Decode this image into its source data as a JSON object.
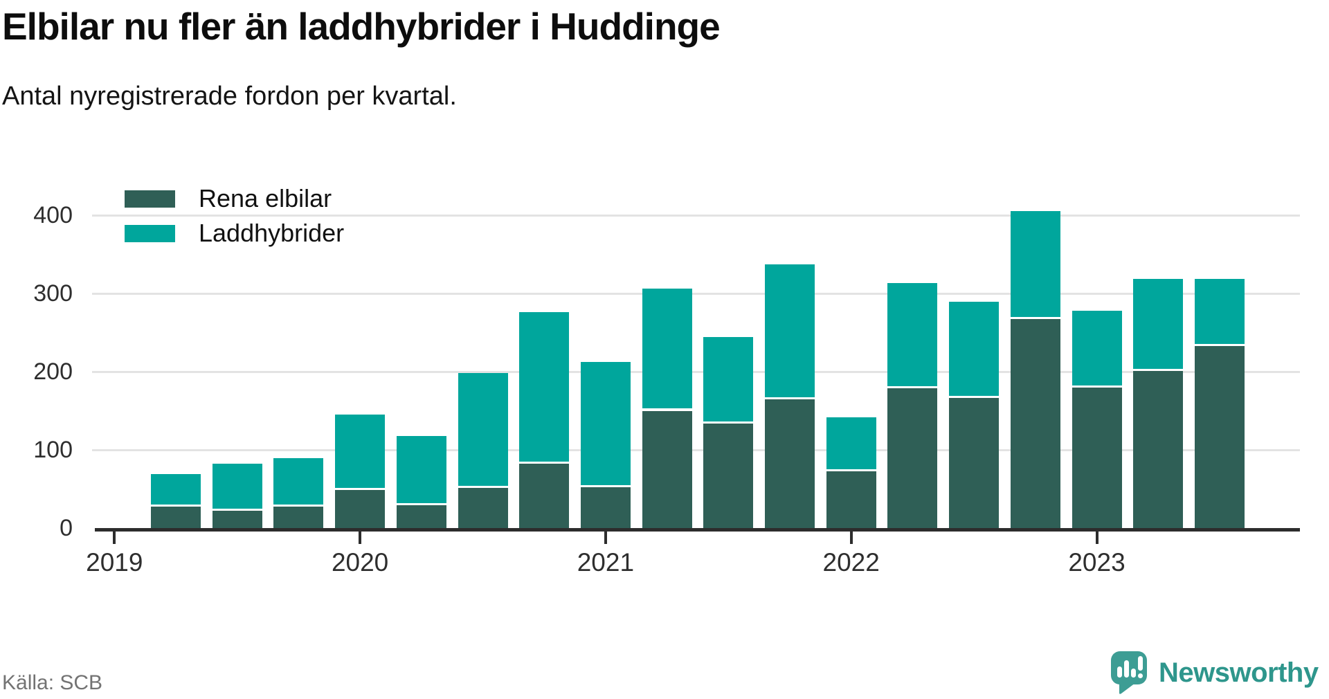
{
  "header": {
    "title": "Elbilar nu fler än laddhybrider i Huddinge",
    "subtitle": "Antal nyregistrerade fordon per kvartal."
  },
  "chart_data": {
    "type": "bar",
    "stacked": true,
    "title": "Elbilar nu fler än laddhybrider i Huddinge",
    "subtitle": "Antal nyregistrerade fordon per kvartal.",
    "categories": [
      "2019 Q2",
      "2019 Q3",
      "2019 Q4",
      "2020 Q1",
      "2020 Q2",
      "2020 Q3",
      "2020 Q4",
      "2021 Q1",
      "2021 Q2",
      "2021 Q3",
      "2021 Q4",
      "2022 Q1",
      "2022 Q2",
      "2022 Q3",
      "2022 Q4",
      "2023 Q1",
      "2023 Q2",
      "2023 Q3"
    ],
    "series": [
      {
        "name": "Rena elbilar",
        "color": "#2f5f56",
        "values": [
          27,
          22,
          27,
          49,
          29,
          51,
          82,
          52,
          150,
          134,
          165,
          73,
          179,
          166,
          267,
          180,
          201,
          233
        ]
      },
      {
        "name": "Laddhybrider",
        "color": "#00a69c",
        "values": [
          42,
          60,
          62,
          96,
          89,
          147,
          194,
          160,
          156,
          110,
          172,
          69,
          134,
          123,
          138,
          98,
          118,
          86
        ]
      }
    ],
    "xlabel": "",
    "ylabel": "",
    "ylim": [
      0,
      440
    ],
    "yticks": [
      0,
      100,
      200,
      300,
      400
    ],
    "year_ticks": [
      "2019",
      "2020",
      "2021",
      "2022",
      "2023"
    ],
    "grid": "horizontal",
    "gridline_color": "#e3e3e3",
    "axis_color": "#2d2d2d",
    "legend_position": "top-left"
  },
  "footer": {
    "source": "Källa: SCB",
    "brand": "Newsworthy",
    "brand_color": "#2e968c",
    "logo_bubble_color": "#3d9d94"
  }
}
